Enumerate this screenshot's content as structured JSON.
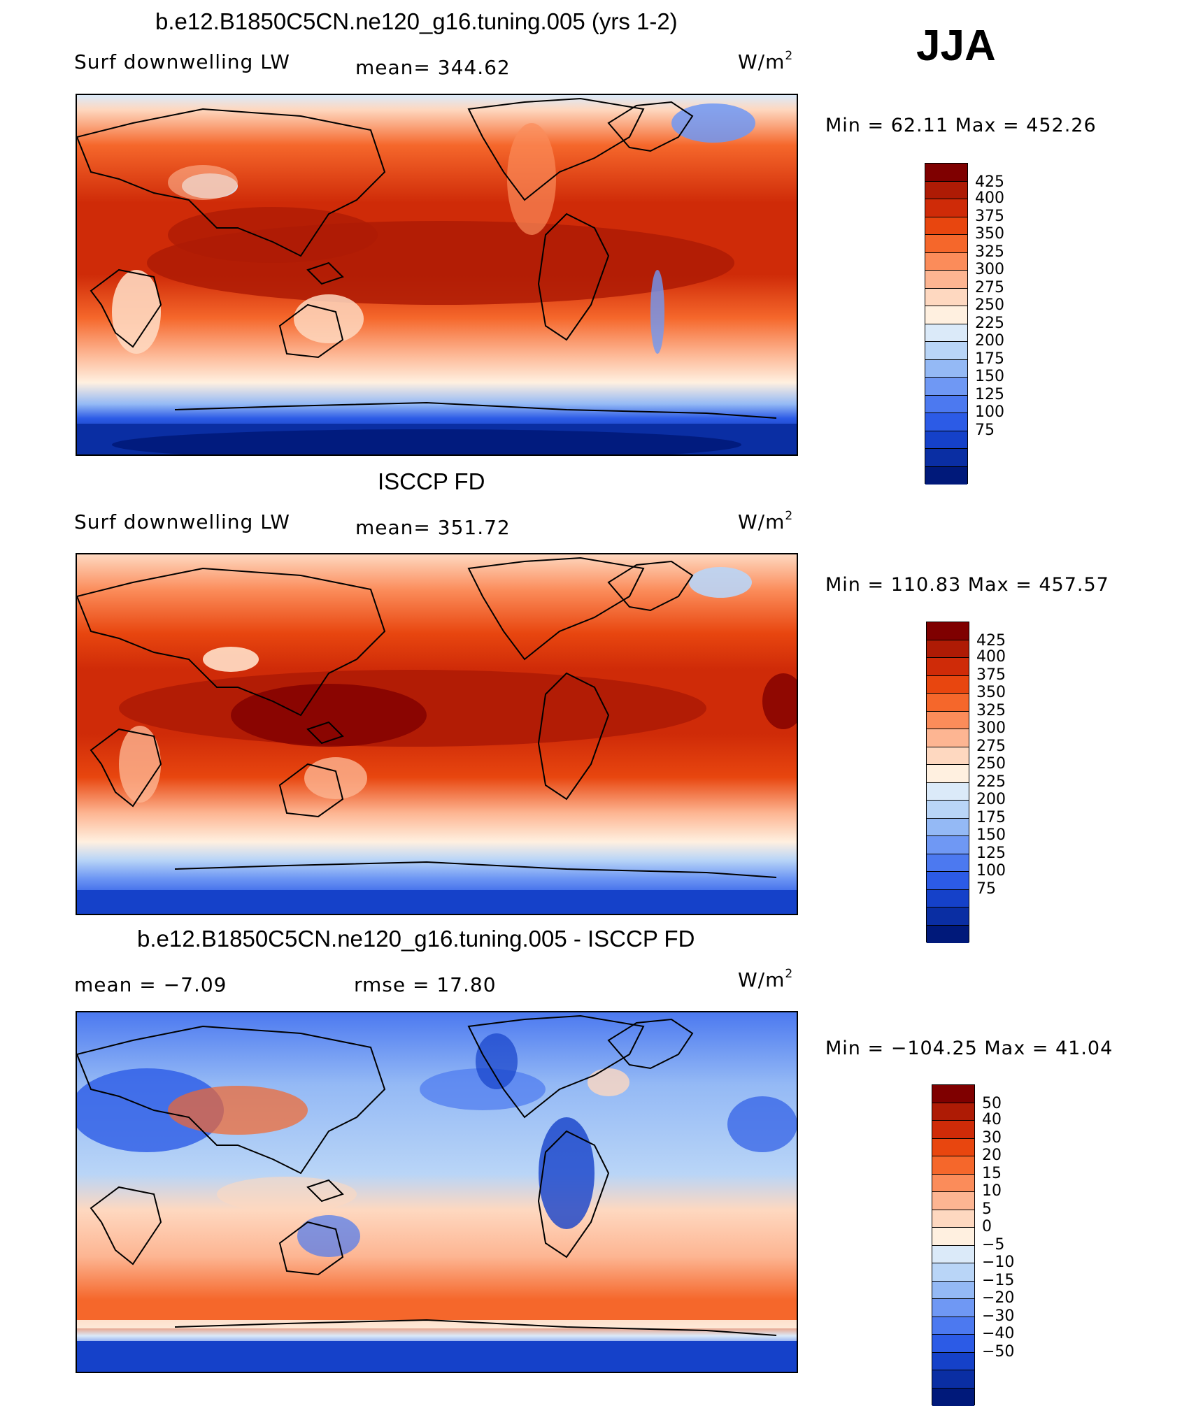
{
  "season": "JJA",
  "units_label": "W/m",
  "units_superscript": "2",
  "palettes": {
    "absolute": [
      "#7f0000",
      "#ae1b05",
      "#cf2b08",
      "#e8460f",
      "#f5672b",
      "#fb8c5a",
      "#fdb592",
      "#fed8c0",
      "#fff0e0",
      "#dbeaf9",
      "#b9d5f7",
      "#94b9f5",
      "#6f98f4",
      "#4c79f0",
      "#2c5be6",
      "#1541c9",
      "#0a2ea3",
      "#00197a"
    ],
    "difference": [
      "#7f0000",
      "#ae1b05",
      "#cf2b08",
      "#e8460f",
      "#f5672b",
      "#fb8c5a",
      "#fdb592",
      "#fed8c0",
      "#fff0e0",
      "#dbeaf9",
      "#b9d5f7",
      "#94b9f5",
      "#6f98f4",
      "#4c79f0",
      "#2c5be6",
      "#1541c9",
      "#0a2ea3",
      "#00197a"
    ]
  },
  "panels": [
    {
      "title": "b.e12.B1850C5CN.ne120_g16.tuning.005 (yrs 1-2)",
      "variable": "Surf downwelling LW",
      "stat": "mean= 344.62",
      "min_max": "Min =   62.11 Max = 452.26",
      "colorbar_labels": [
        "425",
        "400",
        "375",
        "350",
        "325",
        "300",
        "275",
        "250",
        "225",
        "200",
        "175",
        "150",
        "125",
        "100",
        "75"
      ]
    },
    {
      "title": "ISCCP FD",
      "variable": "Surf downwelling LW",
      "stat": "mean= 351.72",
      "min_max": "Min = 110.83 Max = 457.57",
      "colorbar_labels": [
        "425",
        "400",
        "375",
        "350",
        "325",
        "300",
        "275",
        "250",
        "225",
        "200",
        "175",
        "150",
        "125",
        "100",
        "75"
      ]
    },
    {
      "title": "b.e12.B1850C5CN.ne120_g16.tuning.005 - ISCCP FD",
      "variable": "mean =   −7.09",
      "stat": "rmse =   17.80",
      "min_max": "Min = −104.25 Max =   41.04",
      "colorbar_labels": [
        "50",
        "40",
        "30",
        "20",
        "15",
        "10",
        "5",
        "0",
        "−5",
        "−10",
        "−15",
        "−20",
        "−30",
        "−40",
        "−50"
      ]
    }
  ]
}
